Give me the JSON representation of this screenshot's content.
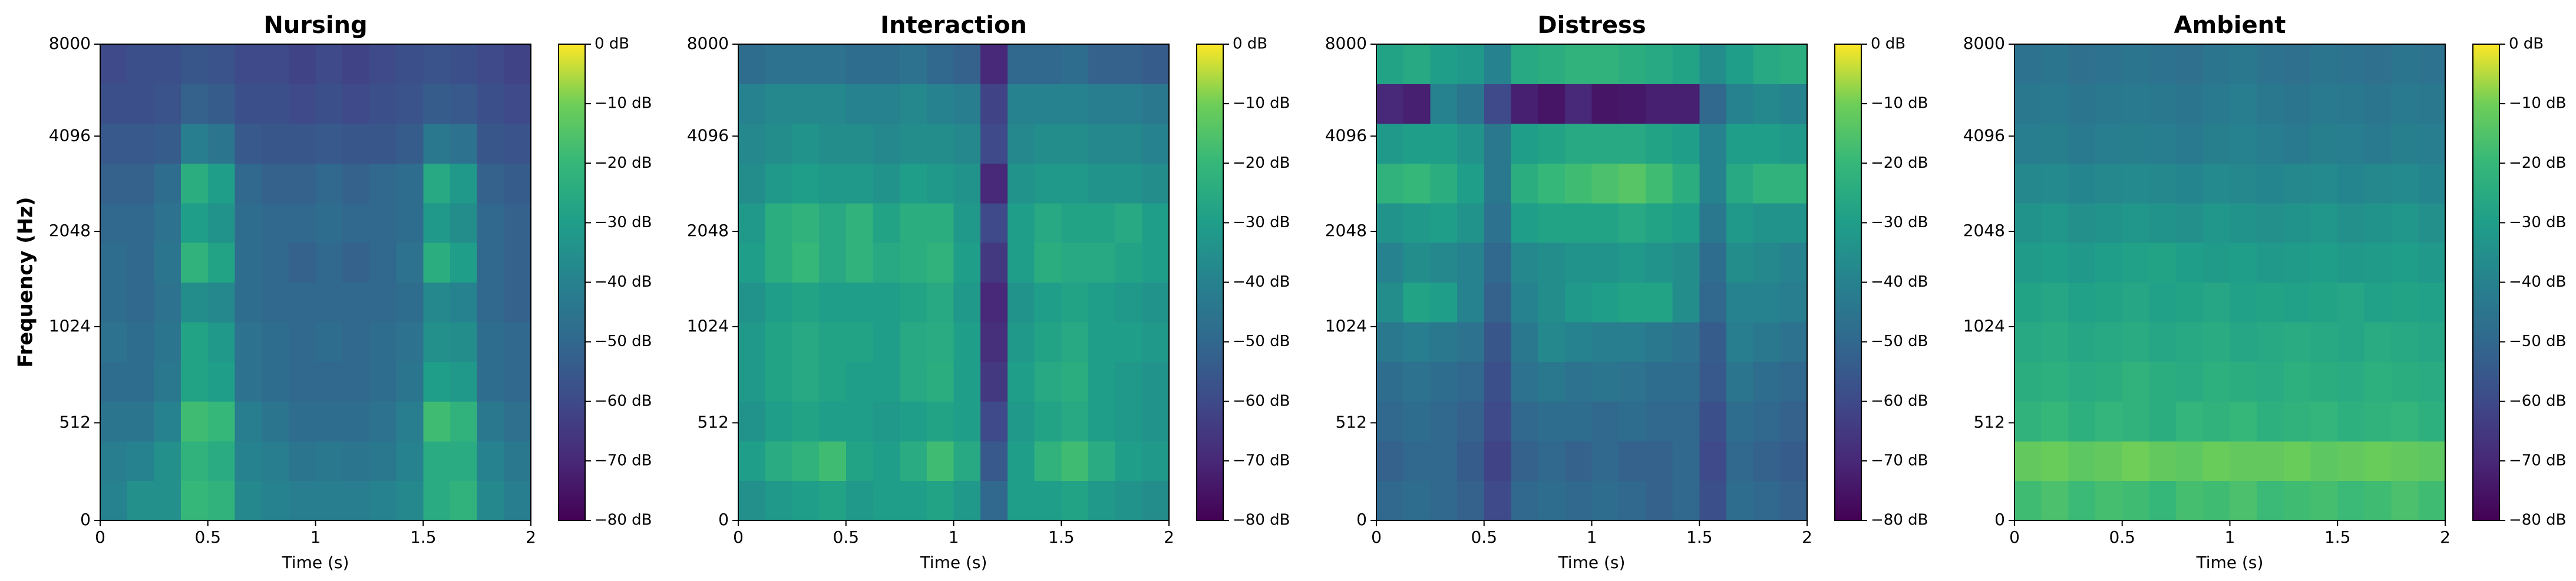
{
  "chart_data": [
    {
      "type": "heatmap",
      "title": "Nursing",
      "xlabel": "Time (s)",
      "ylabel": "Frequency (Hz)",
      "colormap": "viridis",
      "xlim": [
        0,
        2
      ],
      "xticks": [
        0,
        0.5,
        1,
        1.5,
        2
      ],
      "ylim": [
        0,
        8000
      ],
      "yticks": [
        0,
        512,
        1024,
        2048,
        4096,
        8000
      ],
      "yscale": "symlog",
      "linthresh": 1000,
      "base": 2,
      "clim": [
        -80,
        0
      ],
      "cticks": [
        {
          "value": 0,
          "label": "0 dB"
        },
        {
          "value": -10,
          "label": "−10 dB"
        },
        {
          "value": -20,
          "label": "−20 dB"
        },
        {
          "value": -30,
          "label": "−30 dB"
        },
        {
          "value": -40,
          "label": "−40 dB"
        },
        {
          "value": -50,
          "label": "−50 dB"
        },
        {
          "value": -60,
          "label": "−60 dB"
        },
        {
          "value": -70,
          "label": "−70 dB"
        },
        {
          "value": -80,
          "label": "−80 dB"
        }
      ],
      "z": [
        [
          -40,
          -35,
          -35,
          -20,
          -22,
          -38,
          -40,
          -42,
          -42,
          -42,
          -40,
          -38,
          -25,
          -22,
          -38,
          -42
        ],
        [
          -42,
          -40,
          -35,
          -22,
          -25,
          -40,
          -42,
          -45,
          -44,
          -45,
          -44,
          -40,
          -25,
          -25,
          -40,
          -44
        ],
        [
          -45,
          -45,
          -40,
          -18,
          -20,
          -42,
          -45,
          -48,
          -48,
          -48,
          -46,
          -42,
          -18,
          -22,
          -44,
          -47
        ],
        [
          -48,
          -48,
          -44,
          -28,
          -30,
          -46,
          -48,
          -50,
          -50,
          -50,
          -48,
          -45,
          -30,
          -32,
          -48,
          -50
        ],
        [
          -46,
          -48,
          -45,
          -28,
          -32,
          -46,
          -48,
          -50,
          -48,
          -50,
          -48,
          -46,
          -35,
          -36,
          -48,
          -50
        ],
        [
          -48,
          -50,
          -46,
          -36,
          -38,
          -48,
          -50,
          -50,
          -50,
          -50,
          -50,
          -48,
          -38,
          -40,
          -50,
          -52
        ],
        [
          -48,
          -50,
          -45,
          -22,
          -28,
          -48,
          -50,
          -52,
          -50,
          -52,
          -50,
          -46,
          -24,
          -30,
          -50,
          -52
        ],
        [
          -50,
          -50,
          -46,
          -30,
          -34,
          -48,
          -50,
          -50,
          -48,
          -50,
          -50,
          -48,
          -32,
          -36,
          -50,
          -52
        ],
        [
          -52,
          -52,
          -48,
          -24,
          -30,
          -50,
          -52,
          -52,
          -50,
          -52,
          -50,
          -48,
          -26,
          -32,
          -52,
          -54
        ],
        [
          -55,
          -55,
          -54,
          -42,
          -45,
          -55,
          -56,
          -56,
          -55,
          -56,
          -56,
          -54,
          -44,
          -46,
          -56,
          -57
        ],
        [
          -58,
          -58,
          -57,
          -52,
          -54,
          -58,
          -58,
          -60,
          -58,
          -60,
          -58,
          -57,
          -54,
          -55,
          -58,
          -60
        ],
        [
          -60,
          -58,
          -58,
          -56,
          -57,
          -60,
          -60,
          -62,
          -60,
          -62,
          -60,
          -58,
          -57,
          -58,
          -60,
          -62
        ]
      ]
    },
    {
      "type": "heatmap",
      "title": "Interaction",
      "xlabel": "Time (s)",
      "colormap": "viridis",
      "xlim": [
        0,
        2
      ],
      "xticks": [
        0,
        0.5,
        1,
        1.5,
        2
      ],
      "ylim": [
        0,
        8000
      ],
      "yticks": [
        0,
        512,
        1024,
        2048,
        4096,
        8000
      ],
      "yscale": "symlog",
      "linthresh": 1000,
      "base": 2,
      "clim": [
        -80,
        0
      ],
      "cticks": [
        {
          "value": 0,
          "label": "0 dB"
        },
        {
          "value": -10,
          "label": "−10 dB"
        },
        {
          "value": -20,
          "label": "−20 dB"
        },
        {
          "value": -30,
          "label": "−30 dB"
        },
        {
          "value": -40,
          "label": "−40 dB"
        },
        {
          "value": -50,
          "label": "−50 dB"
        },
        {
          "value": -60,
          "label": "−60 dB"
        },
        {
          "value": -70,
          "label": "−70 dB"
        },
        {
          "value": -80,
          "label": "−80 dB"
        }
      ],
      "z": [
        [
          -35,
          -32,
          -30,
          -28,
          -32,
          -30,
          -30,
          -28,
          -32,
          -50,
          -30,
          -30,
          -28,
          -32,
          -34,
          -36
        ],
        [
          -30,
          -25,
          -22,
          -18,
          -28,
          -30,
          -25,
          -18,
          -26,
          -55,
          -30,
          -22,
          -18,
          -25,
          -30,
          -32
        ],
        [
          -34,
          -30,
          -28,
          -30,
          -30,
          -32,
          -30,
          -28,
          -30,
          -60,
          -32,
          -28,
          -26,
          -30,
          -32,
          -34
        ],
        [
          -32,
          -28,
          -26,
          -28,
          -30,
          -30,
          -26,
          -24,
          -30,
          -65,
          -30,
          -26,
          -24,
          -30,
          -32,
          -34
        ],
        [
          -32,
          -28,
          -26,
          -28,
          -28,
          -30,
          -26,
          -25,
          -30,
          -68,
          -32,
          -28,
          -26,
          -30,
          -30,
          -32
        ],
        [
          -34,
          -30,
          -28,
          -30,
          -30,
          -30,
          -28,
          -26,
          -32,
          -70,
          -34,
          -30,
          -28,
          -30,
          -32,
          -34
        ],
        [
          -30,
          -24,
          -20,
          -26,
          -22,
          -26,
          -24,
          -22,
          -30,
          -65,
          -30,
          -24,
          -26,
          -26,
          -28,
          -30
        ],
        [
          -32,
          -24,
          -22,
          -26,
          -22,
          -28,
          -24,
          -24,
          -32,
          -60,
          -30,
          -26,
          -28,
          -28,
          -26,
          -30
        ],
        [
          -36,
          -32,
          -30,
          -32,
          -32,
          -34,
          -30,
          -32,
          -34,
          -70,
          -34,
          -32,
          -32,
          -34,
          -34,
          -36
        ],
        [
          -38,
          -36,
          -34,
          -36,
          -36,
          -38,
          -36,
          -36,
          -38,
          -60,
          -38,
          -36,
          -36,
          -38,
          -38,
          -40
        ],
        [
          -40,
          -38,
          -38,
          -38,
          -40,
          -40,
          -38,
          -40,
          -42,
          -62,
          -40,
          -40,
          -40,
          -42,
          -42,
          -44
        ],
        [
          -48,
          -46,
          -46,
          -46,
          -48,
          -48,
          -46,
          -50,
          -52,
          -70,
          -50,
          -50,
          -48,
          -52,
          -52,
          -54
        ]
      ]
    },
    {
      "type": "heatmap",
      "title": "Distress",
      "xlabel": "Time (s)",
      "colormap": "viridis",
      "xlim": [
        0,
        2
      ],
      "xticks": [
        0,
        0.5,
        1,
        1.5,
        2
      ],
      "ylim": [
        0,
        8000
      ],
      "yticks": [
        0,
        512,
        1024,
        2048,
        4096,
        8000
      ],
      "yscale": "symlog",
      "linthresh": 1000,
      "base": 2,
      "clim": [
        -80,
        0
      ],
      "cticks": [
        {
          "value": 0,
          "label": "0 dB"
        },
        {
          "value": -10,
          "label": "−10 dB"
        },
        {
          "value": -20,
          "label": "−20 dB"
        },
        {
          "value": -30,
          "label": "−30 dB"
        },
        {
          "value": -40,
          "label": "−40 dB"
        },
        {
          "value": -50,
          "label": "−50 dB"
        },
        {
          "value": -60,
          "label": "−60 dB"
        },
        {
          "value": -70,
          "label": "−70 dB"
        },
        {
          "value": -80,
          "label": "−80 dB"
        }
      ],
      "z": [
        [
          -50,
          -48,
          -50,
          -52,
          -60,
          -50,
          -48,
          -50,
          -48,
          -50,
          -52,
          -50,
          -58,
          -48,
          -50,
          -52
        ],
        [
          -52,
          -50,
          -50,
          -54,
          -62,
          -52,
          -50,
          -52,
          -50,
          -52,
          -52,
          -50,
          -60,
          -50,
          -52,
          -54
        ],
        [
          -50,
          -48,
          -50,
          -52,
          -60,
          -50,
          -48,
          -48,
          -50,
          -48,
          -50,
          -50,
          -58,
          -48,
          -50,
          -52
        ],
        [
          -48,
          -46,
          -48,
          -50,
          -58,
          -46,
          -44,
          -46,
          -45,
          -46,
          -48,
          -48,
          -55,
          -45,
          -48,
          -50
        ],
        [
          -44,
          -42,
          -44,
          -46,
          -56,
          -44,
          -38,
          -40,
          -42,
          -42,
          -44,
          -46,
          -54,
          -42,
          -44,
          -46
        ],
        [
          -36,
          -28,
          -30,
          -40,
          -52,
          -40,
          -36,
          -32,
          -30,
          -28,
          -28,
          -36,
          -50,
          -40,
          -40,
          -42
        ],
        [
          -40,
          -36,
          -38,
          -40,
          -50,
          -38,
          -36,
          -34,
          -34,
          -32,
          -34,
          -36,
          -48,
          -36,
          -38,
          -40
        ],
        [
          -34,
          -32,
          -30,
          -34,
          -46,
          -30,
          -28,
          -28,
          -28,
          -26,
          -28,
          -30,
          -44,
          -32,
          -34,
          -34
        ],
        [
          -22,
          -20,
          -24,
          -30,
          -44,
          -24,
          -20,
          -18,
          -16,
          -14,
          -18,
          -24,
          -40,
          -26,
          -22,
          -22
        ],
        [
          -32,
          -30,
          -30,
          -34,
          -44,
          -30,
          -28,
          -26,
          -26,
          -26,
          -28,
          -30,
          -40,
          -30,
          -30,
          -32
        ],
        [
          -70,
          -72,
          -40,
          -45,
          -60,
          -72,
          -75,
          -70,
          -75,
          -74,
          -72,
          -72,
          -50,
          -40,
          -38,
          -40
        ],
        [
          -28,
          -26,
          -30,
          -32,
          -40,
          -26,
          -24,
          -22,
          -22,
          -24,
          -26,
          -28,
          -36,
          -30,
          -26,
          -24
        ]
      ]
    },
    {
      "type": "heatmap",
      "title": "Ambient",
      "xlabel": "Time (s)",
      "colormap": "viridis",
      "xlim": [
        0,
        2
      ],
      "xticks": [
        0,
        0.5,
        1,
        1.5,
        2
      ],
      "ylim": [
        0,
        8000
      ],
      "yticks": [
        0,
        512,
        1024,
        2048,
        4096,
        8000
      ],
      "yscale": "symlog",
      "linthresh": 1000,
      "base": 2,
      "clim": [
        -80,
        0
      ],
      "cticks": [
        {
          "value": 0,
          "label": "0 dB"
        },
        {
          "value": -10,
          "label": "−10 dB"
        },
        {
          "value": -20,
          "label": "−20 dB"
        },
        {
          "value": -30,
          "label": "−30 dB"
        },
        {
          "value": -40,
          "label": "−40 dB"
        },
        {
          "value": -50,
          "label": "−50 dB"
        },
        {
          "value": -60,
          "label": "−60 dB"
        },
        {
          "value": -70,
          "label": "−70 dB"
        },
        {
          "value": -80,
          "label": "−80 dB"
        }
      ],
      "z": [
        [
          -18,
          -16,
          -19,
          -17,
          -18,
          -20,
          -17,
          -18,
          -16,
          -19,
          -18,
          -17,
          -19,
          -18,
          -16,
          -18
        ],
        [
          -12,
          -11,
          -13,
          -12,
          -10,
          -12,
          -13,
          -11,
          -12,
          -12,
          -11,
          -13,
          -12,
          -11,
          -12,
          -13
        ],
        [
          -22,
          -20,
          -23,
          -21,
          -22,
          -24,
          -21,
          -22,
          -20,
          -23,
          -22,
          -21,
          -23,
          -22,
          -21,
          -23
        ],
        [
          -24,
          -23,
          -25,
          -24,
          -22,
          -24,
          -25,
          -23,
          -24,
          -25,
          -23,
          -24,
          -25,
          -23,
          -24,
          -25
        ],
        [
          -26,
          -25,
          -27,
          -26,
          -25,
          -27,
          -26,
          -25,
          -27,
          -26,
          -25,
          -26,
          -27,
          -25,
          -26,
          -27
        ],
        [
          -28,
          -27,
          -29,
          -28,
          -27,
          -29,
          -28,
          -27,
          -29,
          -28,
          -29,
          -28,
          -27,
          -29,
          -28,
          -29
        ],
        [
          -31,
          -30,
          -32,
          -30,
          -29,
          -28,
          -30,
          -31,
          -30,
          -32,
          -31,
          -30,
          -32,
          -31,
          -30,
          -32
        ],
        [
          -34,
          -33,
          -35,
          -34,
          -33,
          -34,
          -35,
          -33,
          -34,
          -35,
          -34,
          -33,
          -35,
          -34,
          -33,
          -35
        ],
        [
          -38,
          -37,
          -39,
          -38,
          -37,
          -38,
          -39,
          -37,
          -38,
          -39,
          -38,
          -37,
          -39,
          -38,
          -37,
          -39
        ],
        [
          -42,
          -41,
          -43,
          -42,
          -41,
          -42,
          -43,
          -41,
          -40,
          -42,
          -43,
          -41,
          -42,
          -43,
          -41,
          -42
        ],
        [
          -44,
          -43,
          -45,
          -44,
          -43,
          -44,
          -45,
          -43,
          -42,
          -44,
          -45,
          -43,
          -44,
          -45,
          -43,
          -44
        ],
        [
          -46,
          -45,
          -47,
          -46,
          -45,
          -46,
          -47,
          -45,
          -44,
          -46,
          -47,
          -45,
          -46,
          -47,
          -45,
          -46
        ]
      ]
    }
  ]
}
